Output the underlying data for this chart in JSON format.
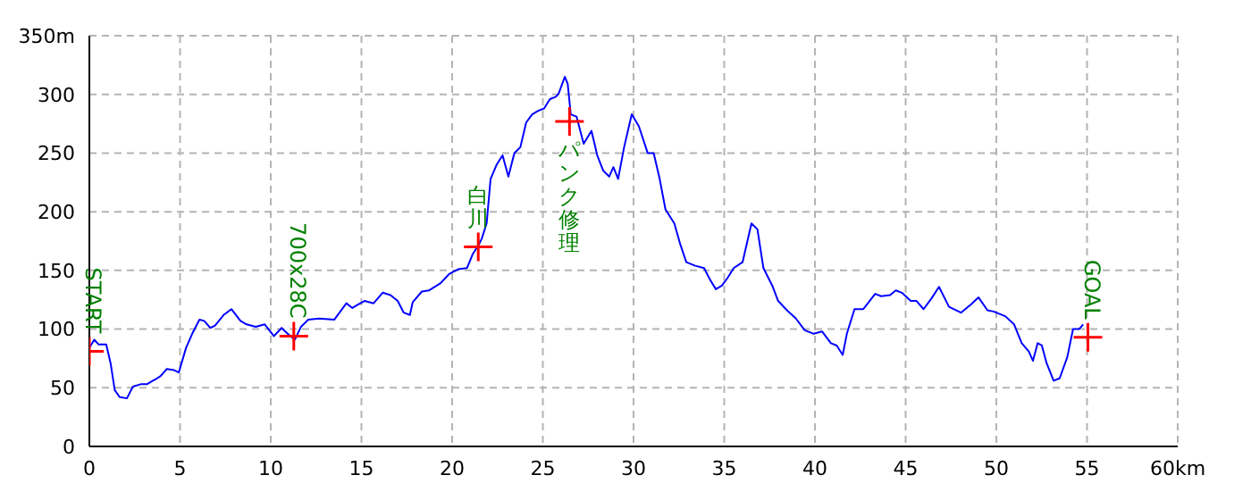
{
  "chart_data": {
    "type": "line",
    "x": [
      0,
      0.27,
      0.5,
      0.93,
      1.17,
      1.4,
      1.67,
      2.07,
      2.4,
      2.83,
      3.17,
      3.5,
      3.73,
      3.93,
      4.27,
      4.67,
      4.93,
      5.33,
      5.67,
      6.07,
      6.33,
      6.67,
      6.93,
      7.4,
      7.83,
      8.33,
      8.67,
      9.17,
      9.67,
      10.17,
      10.6,
      10.93,
      11.33,
      11.67,
      12.07,
      12.67,
      13.5,
      14.17,
      14.5,
      14.83,
      15.17,
      15.67,
      16.17,
      16.6,
      17,
      17.33,
      17.67,
      17.83,
      18.33,
      18.73,
      19.35,
      19.84,
      20.33,
      20.82,
      21.14,
      21.47,
      21.63,
      21.9,
      22.12,
      22.45,
      22.78,
      23.1,
      23.43,
      23.76,
      24.08,
      24.41,
      24.74,
      25.07,
      25.39,
      25.72,
      25.88,
      26.21,
      26.37,
      26.54,
      26.86,
      27.25,
      27.68,
      28,
      28.33,
      28.66,
      28.89,
      29.15,
      29.48,
      29.9,
      30.29,
      30.78,
      31.11,
      31.44,
      31.76,
      32.25,
      32.58,
      32.91,
      33.4,
      33.89,
      34.22,
      34.54,
      34.87,
      35.2,
      35.52,
      36.01,
      36.5,
      36.83,
      37.16,
      37.65,
      37.97,
      38.46,
      38.95,
      39.44,
      39.93,
      40.39,
      40.88,
      41.2,
      41.53,
      41.76,
      42.18,
      42.67,
      43.32,
      43.65,
      44.14,
      44.46,
      44.79,
      45.28,
      45.6,
      45.99,
      46.42,
      46.84,
      47.39,
      48.05,
      48.6,
      49.02,
      49.51,
      49.84,
      50.49,
      50.98,
      51.4,
      51.79,
      52.02,
      52.28,
      52.51,
      52.77,
      53.16,
      53.49,
      53.91,
      54.23,
      54.56,
      54.79
    ],
    "series": [
      {
        "color": "#0000ff",
        "values": [
          84,
          91,
          87,
          87,
          71,
          48,
          42,
          41,
          51,
          53,
          53,
          56,
          58,
          60,
          66,
          65,
          63,
          84,
          96,
          108,
          107,
          101,
          103,
          112,
          117,
          107,
          104,
          102,
          104,
          94,
          101,
          96,
          91,
          102,
          108,
          109,
          108,
          122,
          118,
          121,
          124,
          122,
          131,
          129,
          124,
          114,
          112,
          123,
          132,
          133,
          139,
          147,
          151,
          152,
          164,
          172,
          177,
          190,
          228,
          240,
          248,
          230,
          250,
          255,
          276,
          283,
          286,
          288,
          296,
          298,
          301,
          315,
          309,
          283,
          281,
          258,
          269,
          248,
          235,
          230,
          238,
          228,
          255,
          283,
          273,
          250,
          250,
          228,
          202,
          190,
          172,
          157,
          154,
          152,
          142,
          134,
          137,
          144,
          152,
          157,
          190,
          185,
          152,
          137,
          124,
          116,
          109,
          99,
          96,
          98,
          88,
          86,
          78,
          96,
          117,
          117,
          130,
          128,
          129,
          133,
          131,
          124,
          124,
          117,
          126,
          136,
          119,
          114,
          121,
          127,
          116,
          115,
          111,
          104,
          88,
          81,
          73,
          88,
          86,
          71,
          56,
          58,
          76,
          100,
          100,
          104
        ]
      },
      {
        "type": "scatter",
        "color": "#ff0000",
        "marker": "cross",
        "x": [
          0,
          11.27,
          21.44,
          26.47,
          55.05
        ],
        "values": [
          81,
          94,
          170,
          277,
          93
        ]
      }
    ],
    "xlim": [
      0,
      60
    ],
    "ylim": [
      0,
      350
    ],
    "xticks": [
      0,
      5,
      10,
      15,
      20,
      25,
      30,
      35,
      40,
      45,
      50,
      55,
      {
        "value": 60,
        "label": "60km"
      }
    ],
    "yticks": [
      0,
      50,
      100,
      150,
      200,
      250,
      300,
      {
        "value": 350,
        "label": "350m"
      }
    ],
    "grid": true,
    "annotations": [
      {
        "text": "START",
        "x": 0,
        "y": 81
      },
      {
        "text": "700x28C",
        "x": 11.27,
        "y": 94
      },
      {
        "text": "白川",
        "x": 21.44,
        "y": 170
      },
      {
        "text": "パンク修理",
        "x": 26.47,
        "y": 277
      },
      {
        "text": "GOAL",
        "x": 55.05,
        "y": 93
      }
    ]
  }
}
